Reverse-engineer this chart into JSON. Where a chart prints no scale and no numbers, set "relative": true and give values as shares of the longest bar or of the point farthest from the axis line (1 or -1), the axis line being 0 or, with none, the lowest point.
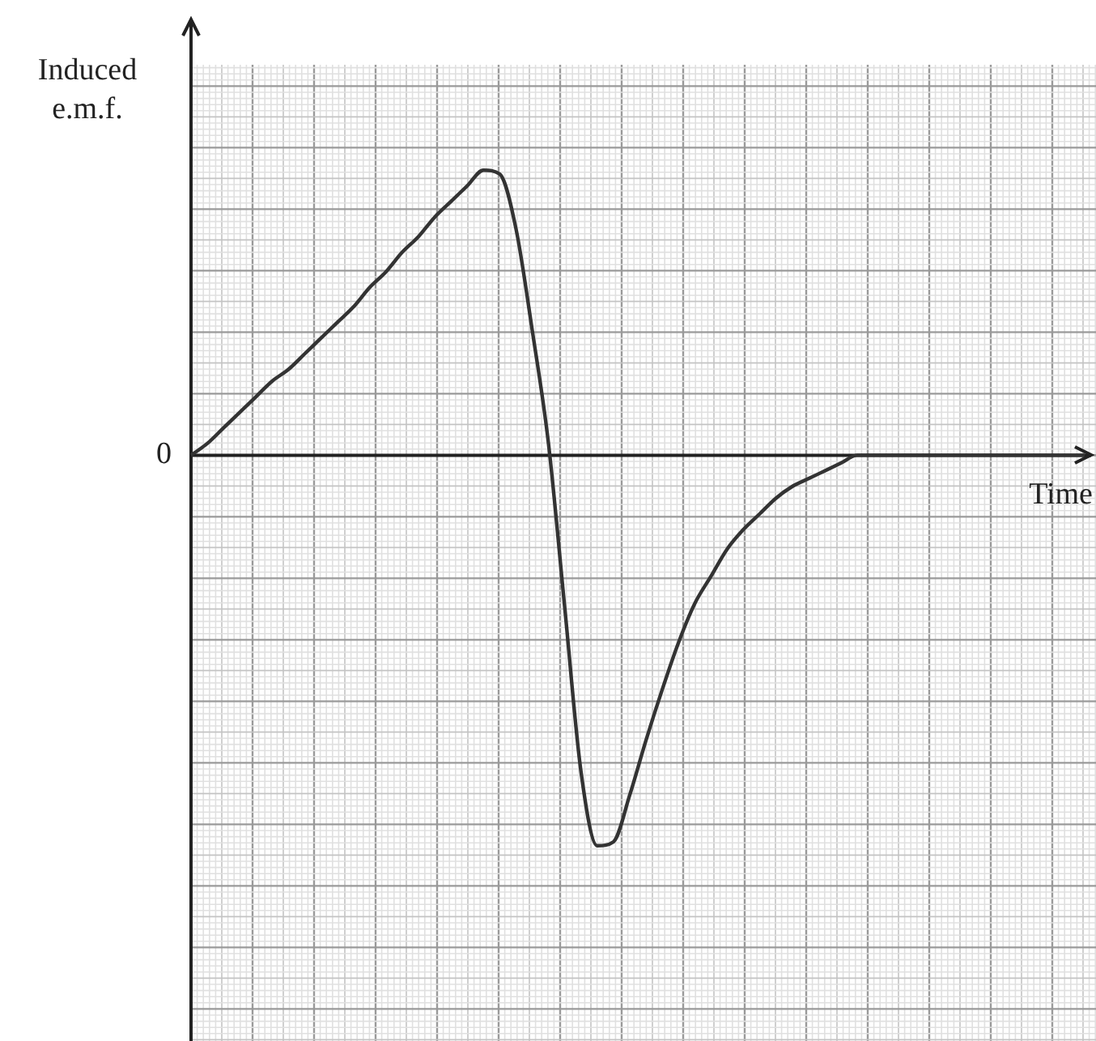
{
  "chart_data": {
    "type": "line",
    "relative": true,
    "ylabel": "Induced e.m.f.",
    "xlabel": "Time",
    "grid": true,
    "legend": false,
    "marker": "none",
    "line_style": "solid",
    "annotations": [
      "0"
    ],
    "categories": [
      null,
      null,
      null,
      null,
      null,
      null,
      null,
      null,
      null,
      null,
      null,
      null,
      null,
      null,
      null,
      null,
      null,
      null,
      null,
      null,
      null,
      null,
      null,
      null,
      null,
      null,
      null,
      null,
      null,
      null,
      null,
      null,
      null,
      null,
      null,
      null,
      null,
      null,
      null,
      null,
      null,
      null,
      null,
      null,
      null,
      null,
      null,
      null,
      null,
      null,
      null,
      null,
      null,
      null,
      null,
      null
    ],
    "series": [
      {
        "color": "#333333",
        "values": [
          0,
          0.03,
          0.07,
          0.11,
          0.15,
          0.19,
          0.22,
          0.26,
          0.3,
          0.34,
          0.38,
          0.43,
          0.47,
          0.52,
          0.56,
          0.61,
          0.65,
          0.69,
          0.73,
          0.72,
          0.58,
          0.32,
          0.03,
          -0.39,
          -0.81,
          -1,
          -0.99,
          -0.87,
          -0.73,
          -0.6,
          -0.48,
          -0.38,
          -0.31,
          -0.24,
          -0.19,
          -0.15,
          -0.11,
          -0.08,
          -0.06,
          -0.04,
          -0.02,
          0,
          0,
          0,
          0,
          0,
          0,
          0,
          0,
          0,
          0,
          0,
          0,
          0,
          0,
          0
        ]
      }
    ]
  }
}
